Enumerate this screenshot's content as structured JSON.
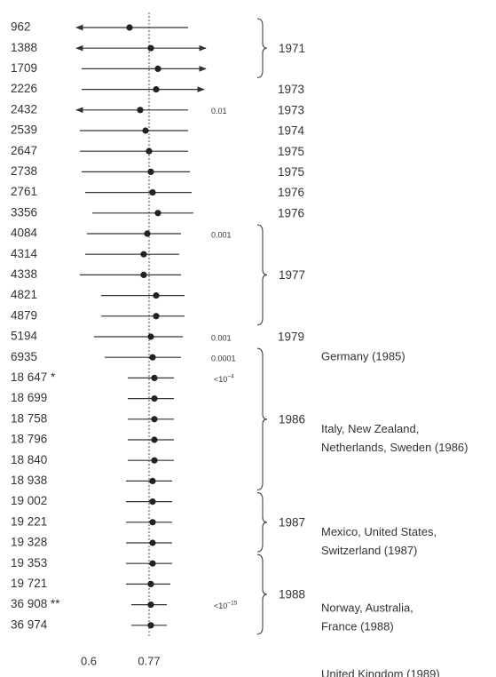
{
  "chart_data": {
    "type": "forest",
    "reference_line": 0.77,
    "x_ticks": [
      {
        "value": 0.6,
        "label": "0.6"
      },
      {
        "value": 0.77,
        "label": "0.77"
      }
    ],
    "rows": [
      {
        "label": "962",
        "est": 0.715,
        "lo": 0.565,
        "hi": 0.88,
        "arrow_left": true,
        "arrow_right": false
      },
      {
        "label": "1388",
        "est": 0.775,
        "lo": 0.565,
        "hi": 0.93,
        "arrow_left": true,
        "arrow_right": true
      },
      {
        "label": "1709",
        "est": 0.795,
        "lo": 0.58,
        "hi": 0.93,
        "arrow_left": false,
        "arrow_right": true
      },
      {
        "label": "2226",
        "est": 0.79,
        "lo": 0.58,
        "hi": 0.925,
        "arrow_left": false,
        "arrow_right": true
      },
      {
        "label": "2432",
        "est": 0.745,
        "lo": 0.565,
        "hi": 0.88,
        "arrow_left": true,
        "arrow_right": false
      },
      {
        "label": "2539",
        "est": 0.76,
        "lo": 0.575,
        "hi": 0.88,
        "arrow_left": false,
        "arrow_right": false
      },
      {
        "label": "2647",
        "est": 0.77,
        "lo": 0.575,
        "hi": 0.88,
        "arrow_left": false,
        "arrow_right": false
      },
      {
        "label": "2738",
        "est": 0.775,
        "lo": 0.58,
        "hi": 0.885,
        "arrow_left": false,
        "arrow_right": false
      },
      {
        "label": "2761",
        "est": 0.78,
        "lo": 0.59,
        "hi": 0.89,
        "arrow_left": false,
        "arrow_right": false
      },
      {
        "label": "3356",
        "est": 0.795,
        "lo": 0.61,
        "hi": 0.895,
        "arrow_left": false,
        "arrow_right": false
      },
      {
        "label": "4084",
        "est": 0.765,
        "lo": 0.595,
        "hi": 0.86,
        "arrow_left": false,
        "arrow_right": false
      },
      {
        "label": "4314",
        "est": 0.755,
        "lo": 0.59,
        "hi": 0.855,
        "arrow_left": false,
        "arrow_right": false
      },
      {
        "label": "4338",
        "est": 0.755,
        "lo": 0.575,
        "hi": 0.86,
        "arrow_left": false,
        "arrow_right": false
      },
      {
        "label": "4821",
        "est": 0.79,
        "lo": 0.635,
        "hi": 0.87,
        "arrow_left": false,
        "arrow_right": false
      },
      {
        "label": "4879",
        "est": 0.79,
        "lo": 0.635,
        "hi": 0.87,
        "arrow_left": false,
        "arrow_right": false
      },
      {
        "label": "5194",
        "est": 0.775,
        "lo": 0.615,
        "hi": 0.865,
        "arrow_left": false,
        "arrow_right": false
      },
      {
        "label": "6935",
        "est": 0.78,
        "lo": 0.645,
        "hi": 0.86,
        "arrow_left": false,
        "arrow_right": false
      },
      {
        "label": "18 647 *",
        "est": 0.785,
        "lo": 0.71,
        "hi": 0.84,
        "arrow_left": false,
        "arrow_right": false
      },
      {
        "label": "18 699",
        "est": 0.785,
        "lo": 0.71,
        "hi": 0.84,
        "arrow_left": false,
        "arrow_right": false
      },
      {
        "label": "18 758",
        "est": 0.785,
        "lo": 0.71,
        "hi": 0.84,
        "arrow_left": false,
        "arrow_right": false
      },
      {
        "label": "18 796",
        "est": 0.785,
        "lo": 0.71,
        "hi": 0.84,
        "arrow_left": false,
        "arrow_right": false
      },
      {
        "label": "18 840",
        "est": 0.785,
        "lo": 0.71,
        "hi": 0.84,
        "arrow_left": false,
        "arrow_right": false
      },
      {
        "label": "18 938",
        "est": 0.78,
        "lo": 0.705,
        "hi": 0.835,
        "arrow_left": false,
        "arrow_right": false
      },
      {
        "label": "19 002",
        "est": 0.78,
        "lo": 0.705,
        "hi": 0.835,
        "arrow_left": false,
        "arrow_right": false
      },
      {
        "label": "19 221",
        "est": 0.78,
        "lo": 0.705,
        "hi": 0.835,
        "arrow_left": false,
        "arrow_right": false
      },
      {
        "label": "19 328",
        "est": 0.78,
        "lo": 0.705,
        "hi": 0.835,
        "arrow_left": false,
        "arrow_right": false
      },
      {
        "label": "19 353",
        "est": 0.78,
        "lo": 0.705,
        "hi": 0.835,
        "arrow_left": false,
        "arrow_right": false
      },
      {
        "label": "19 721",
        "est": 0.775,
        "lo": 0.705,
        "hi": 0.83,
        "arrow_left": false,
        "arrow_right": false
      },
      {
        "label": "36 908 **",
        "est": 0.775,
        "lo": 0.72,
        "hi": 0.82,
        "arrow_left": false,
        "arrow_right": false
      },
      {
        "label": "36 974",
        "est": 0.775,
        "lo": 0.72,
        "hi": 0.82,
        "arrow_left": false,
        "arrow_right": false
      }
    ],
    "p_values": [
      {
        "row": 4,
        "text": "0.01"
      },
      {
        "row": 10,
        "text": "0.001"
      },
      {
        "row": 15,
        "text": "0.001"
      },
      {
        "row": 16,
        "text": "0.0001"
      },
      {
        "row": 17,
        "base": "<10",
        "exp": "−4"
      },
      {
        "row": 28,
        "base": "<10",
        "exp": "−15"
      }
    ],
    "year_labels": [
      {
        "row": 3,
        "text": "1973"
      },
      {
        "row": 4,
        "text": "1973"
      },
      {
        "row": 5,
        "text": "1974"
      },
      {
        "row": 6,
        "text": "1975"
      },
      {
        "row": 7,
        "text": "1975"
      },
      {
        "row": 8,
        "text": "1976"
      },
      {
        "row": 9,
        "text": "1976"
      },
      {
        "row": 15,
        "text": "1979"
      }
    ],
    "year_groups": [
      {
        "start": 0,
        "end": 2,
        "text": "1971"
      },
      {
        "start": 10,
        "end": 14,
        "text": "1977"
      },
      {
        "start": 16,
        "end": 22,
        "text": "1986"
      },
      {
        "start": 23,
        "end": 25,
        "text": "1987"
      },
      {
        "start": 26,
        "end": 29,
        "text": "1988"
      }
    ],
    "annotations": [
      {
        "lines": [
          "Germany (1985)"
        ],
        "row": 16
      },
      {
        "lines": [
          "Italy, New Zealand,",
          "Netherlands, Sweden (1986)"
        ],
        "row": 19.5
      },
      {
        "lines": [
          "Mexico, United States,",
          "Switzerland (1987)"
        ],
        "row": 24.5
      },
      {
        "lines": [
          "Norway, Australia,",
          "France (1988)"
        ],
        "row": 28.2
      },
      {
        "lines": [
          "United Kingdom (1989)"
        ],
        "row": 31.4
      }
    ]
  }
}
